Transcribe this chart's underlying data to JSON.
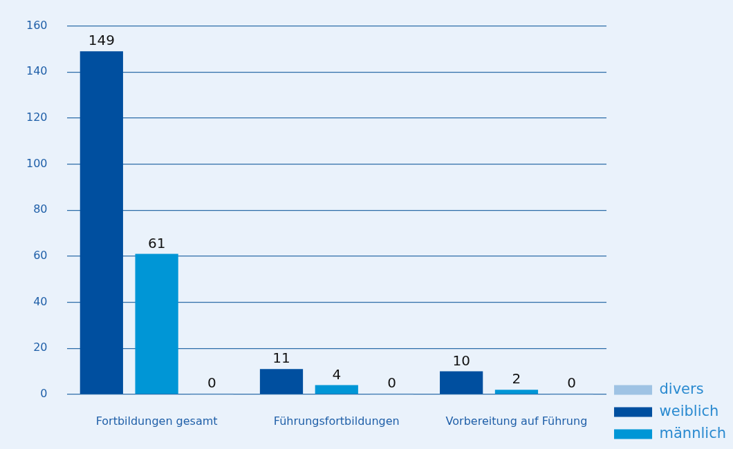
{
  "chart_data": {
    "type": "bar",
    "categories": [
      "Fortbildungen gesamt",
      "Führungsfortbildungen",
      "Vorbereitung auf Führung"
    ],
    "series": [
      {
        "name": "weiblich",
        "color": "#004f9f",
        "values": [
          149,
          11,
          10
        ]
      },
      {
        "name": "männlich",
        "color": "#0096d6",
        "values": [
          61,
          4,
          2
        ]
      },
      {
        "name": "divers",
        "color": "#9fc3e4",
        "values": [
          0,
          0,
          0
        ]
      }
    ],
    "ylim": [
      0,
      160
    ],
    "yticks": [
      0,
      20,
      40,
      60,
      80,
      100,
      120,
      140,
      160
    ],
    "grid": "y",
    "legend": "bottom right",
    "data_labels": true
  }
}
